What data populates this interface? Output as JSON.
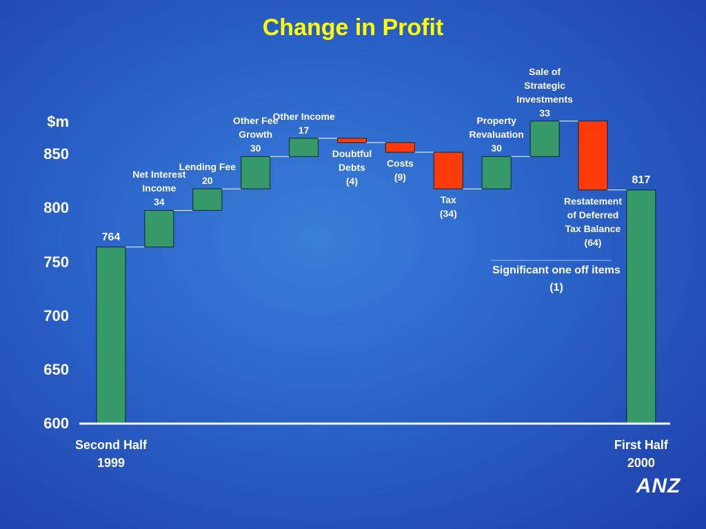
{
  "chart_data": {
    "type": "waterfall",
    "title": "Change in Profit",
    "y_label": "$m",
    "categories": [
      "Second Half 1999",
      "Net Interest Income",
      "Lending Fee",
      "Other Fee Growth",
      "Other Income",
      "Doubtful Debts",
      "Costs",
      "Tax",
      "Property Revaluation",
      "Sale of Strategic Investments",
      "Restatement of Deferred Tax Balance",
      "First Half 2000"
    ],
    "values": [
      764,
      34,
      20,
      30,
      17,
      -4,
      -9,
      -34,
      30,
      33,
      -64,
      817
    ],
    "value_labels": [
      "764",
      "34",
      "20",
      "30",
      "17",
      "(4)",
      "(9)",
      "(34)",
      "30",
      "33",
      "(64)",
      "817"
    ],
    "is_total": [
      true,
      false,
      false,
      false,
      false,
      false,
      false,
      false,
      false,
      false,
      false,
      true
    ],
    "increase_color": "#35996a",
    "decrease_color": "#ff3a0a",
    "total_color": "#35996a",
    "ylim": [
      600,
      900
    ],
    "yticks": [
      600,
      650,
      700,
      750,
      800,
      850
    ],
    "annotation": {
      "text": "Significant one off items",
      "value_label": "(1)"
    },
    "logo": "ANZ"
  }
}
